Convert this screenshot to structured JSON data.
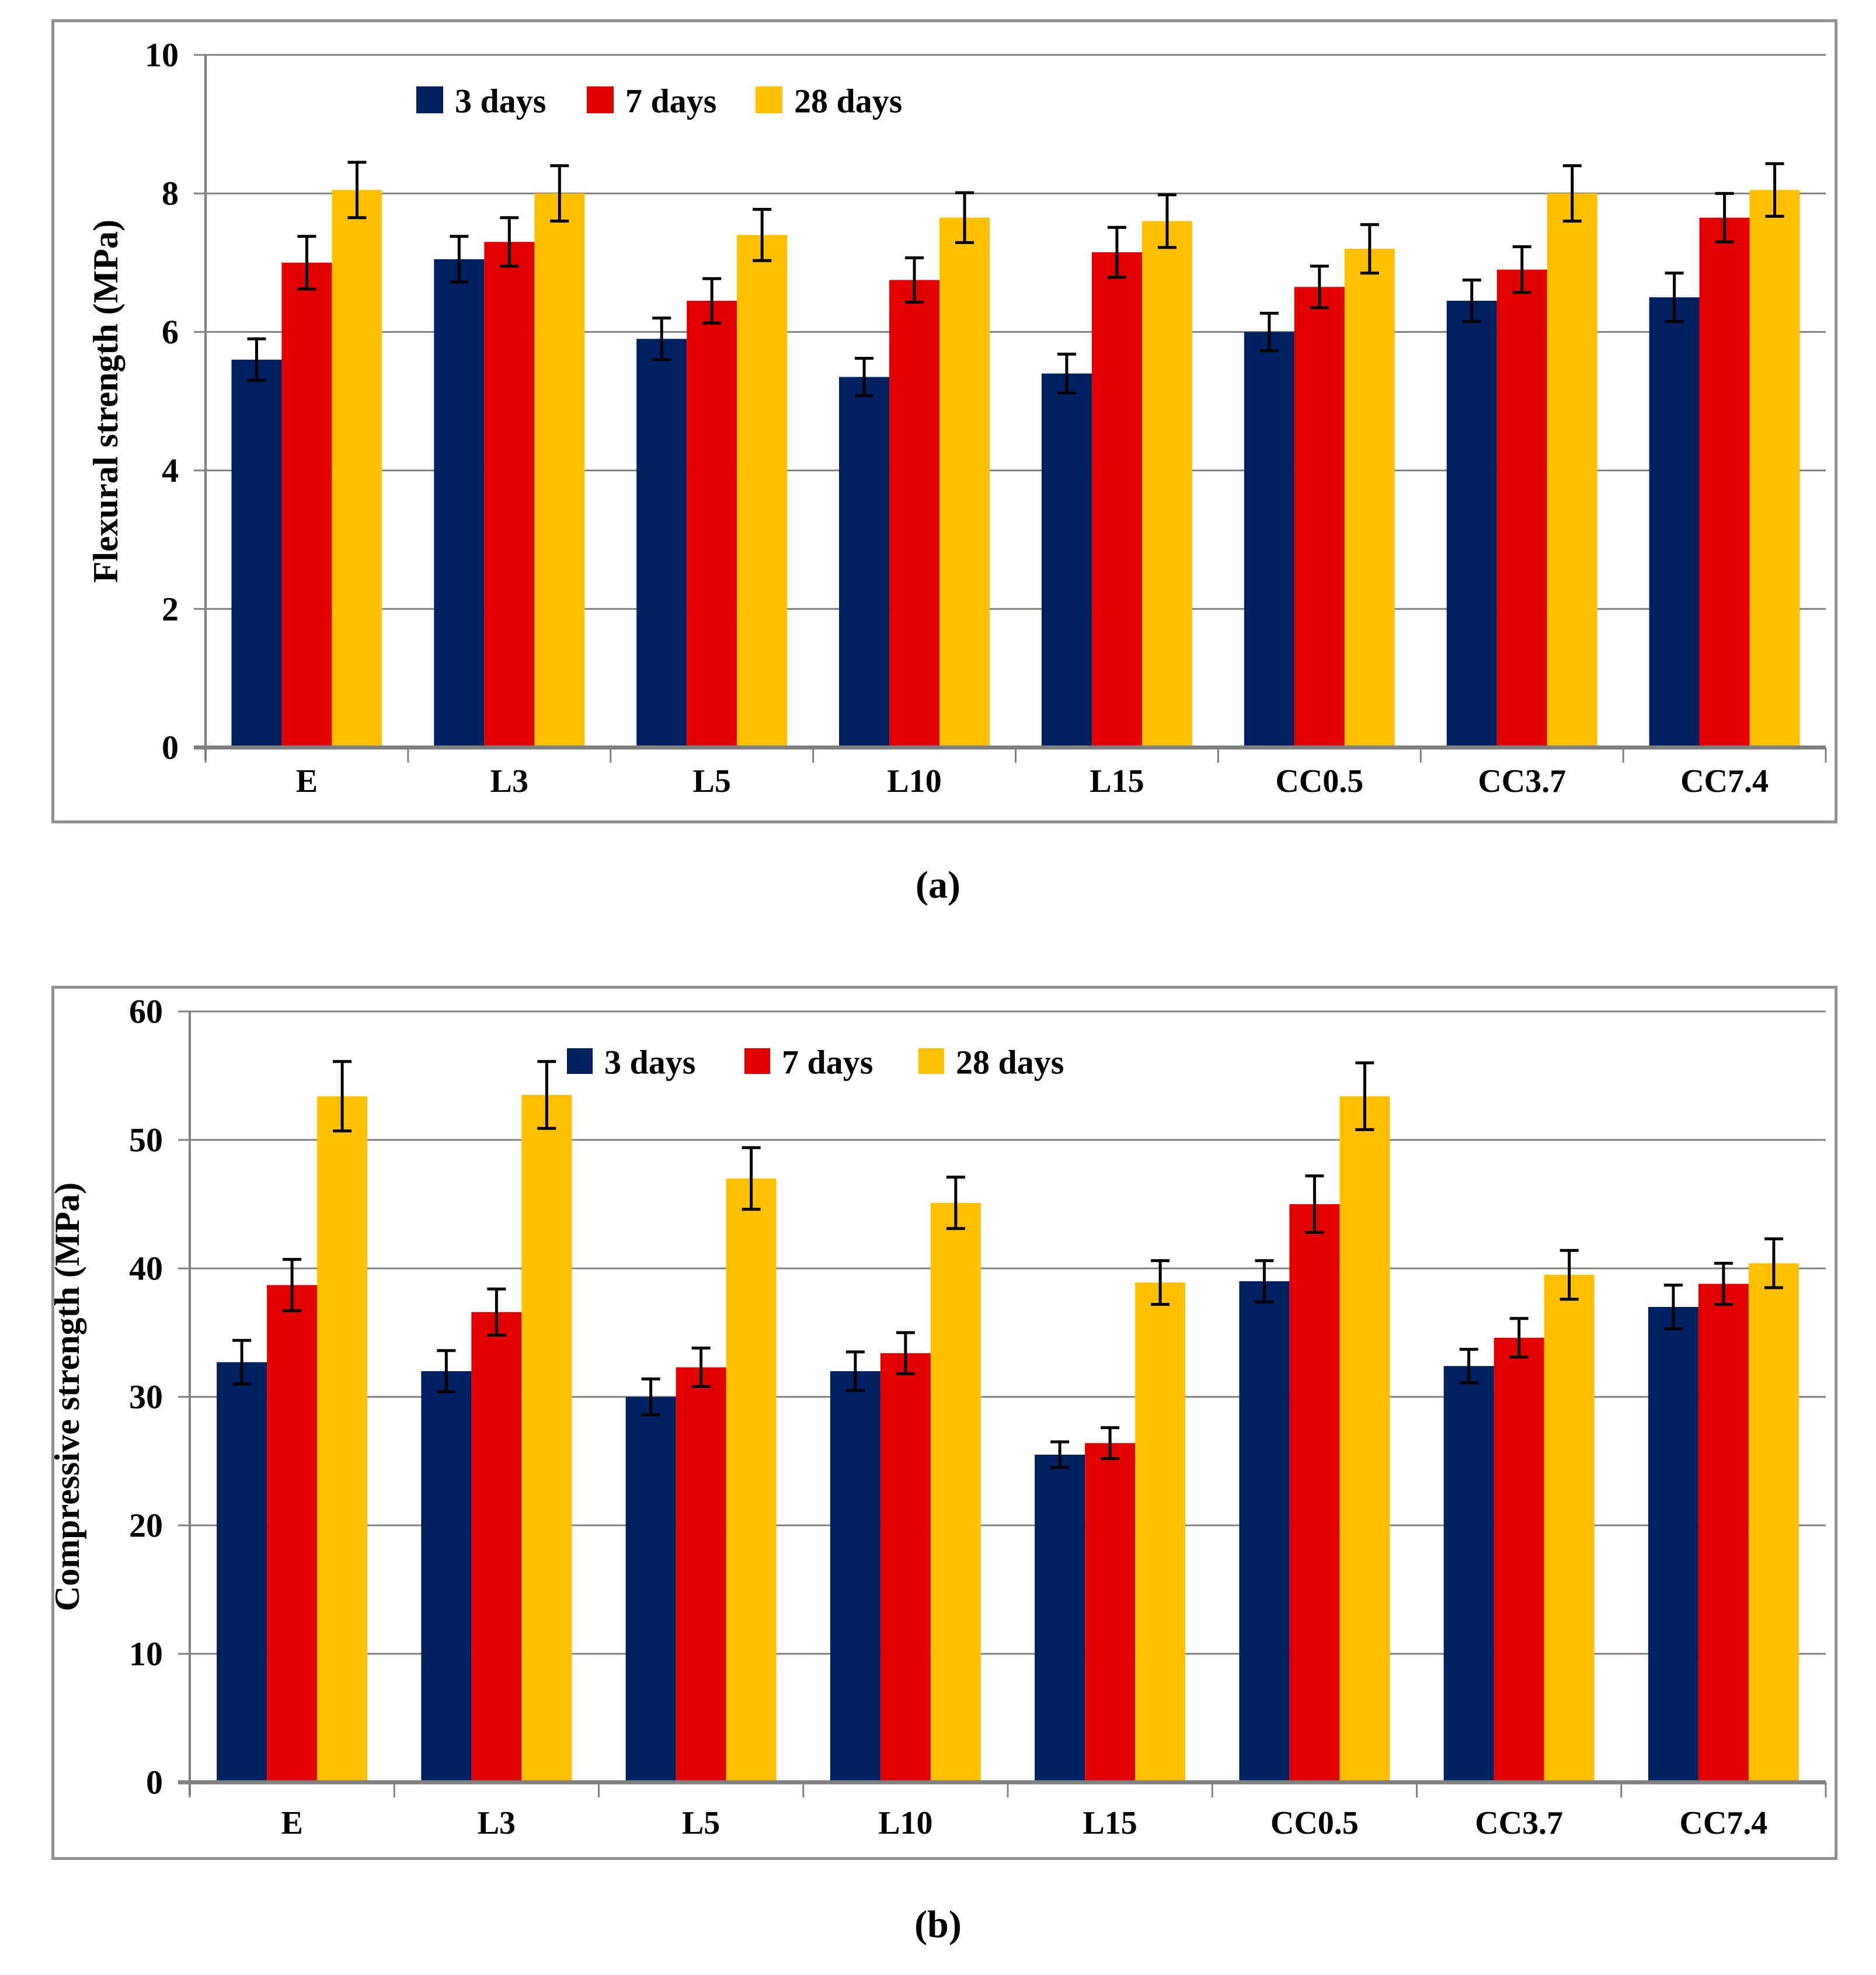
{
  "page": {
    "background": "#ffffff"
  },
  "colors": {
    "series_blue": "#002060",
    "series_red": "#e00000",
    "series_yellow": "#ffc000",
    "gridline": "#808080",
    "axis": "#808080",
    "panel_border": "#919191",
    "error_bar": "#000000",
    "text": "#000000"
  },
  "captions": {
    "a": "(a)",
    "b": "(b)"
  },
  "chart_data": [
    {
      "id": "a",
      "type": "bar",
      "title": "",
      "ylabel": "Flexural strength (MPa)",
      "xlabel": "",
      "ylim": [
        0,
        10
      ],
      "yticks": [
        0,
        2,
        4,
        6,
        8,
        10
      ],
      "grid": true,
      "legend_position": "inside-top-left",
      "categories": [
        "E",
        "L3",
        "L5",
        "L10",
        "L15",
        "CC0.5",
        "CC3.7",
        "CC7.4"
      ],
      "series": [
        {
          "name": "3 days",
          "color": "#002060",
          "values": [
            5.6,
            7.05,
            5.9,
            5.35,
            5.4,
            6.0,
            6.45,
            6.5
          ],
          "errors": [
            0.3,
            0.33,
            0.3,
            0.27,
            0.28,
            0.27,
            0.3,
            0.35
          ]
        },
        {
          "name": "7 days",
          "color": "#e00000",
          "values": [
            7.0,
            7.3,
            6.45,
            6.75,
            7.15,
            6.65,
            6.9,
            7.65
          ],
          "errors": [
            0.38,
            0.35,
            0.32,
            0.32,
            0.36,
            0.3,
            0.33,
            0.35
          ]
        },
        {
          "name": "28 days",
          "color": "#ffc000",
          "values": [
            8.05,
            8.0,
            7.4,
            7.65,
            7.6,
            7.2,
            8.0,
            8.05
          ],
          "errors": [
            0.4,
            0.4,
            0.37,
            0.36,
            0.38,
            0.35,
            0.4,
            0.38
          ]
        }
      ],
      "caption": "(a)"
    },
    {
      "id": "b",
      "type": "bar",
      "title": "",
      "ylabel": "Compressive strength (MPa)",
      "xlabel": "",
      "ylim": [
        0,
        60
      ],
      "yticks": [
        0,
        10,
        20,
        30,
        40,
        50,
        60
      ],
      "grid": true,
      "legend_position": "inside-top-center",
      "categories": [
        "E",
        "L3",
        "L5",
        "L10",
        "L15",
        "CC0.5",
        "CC3.7",
        "CC7.4"
      ],
      "series": [
        {
          "name": "3 days",
          "color": "#002060",
          "values": [
            32.7,
            32.0,
            30.0,
            32.0,
            25.5,
            39.0,
            32.4,
            37.0
          ],
          "errors": [
            1.7,
            1.6,
            1.4,
            1.5,
            1.0,
            1.6,
            1.3,
            1.7
          ]
        },
        {
          "name": "7 days",
          "color": "#e00000",
          "values": [
            38.7,
            36.6,
            32.3,
            33.4,
            26.4,
            45.0,
            34.6,
            38.8
          ],
          "errors": [
            2.0,
            1.8,
            1.5,
            1.6,
            1.2,
            2.2,
            1.5,
            1.6
          ]
        },
        {
          "name": "28 days",
          "color": "#ffc000",
          "values": [
            53.4,
            53.5,
            47.0,
            45.1,
            38.9,
            53.4,
            39.5,
            40.4
          ],
          "errors": [
            2.7,
            2.6,
            2.4,
            2.0,
            1.7,
            2.6,
            1.9,
            1.9
          ]
        }
      ],
      "caption": "(b)"
    }
  ]
}
